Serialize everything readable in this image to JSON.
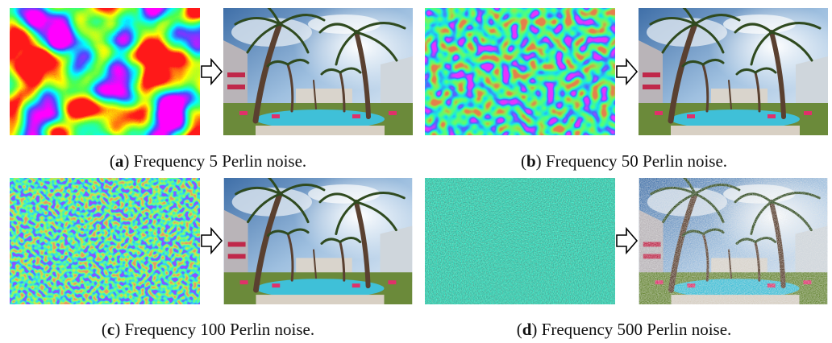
{
  "panels": [
    {
      "caption": [
        "(",
        "a",
        ") Frequency 5 Perlin noise."
      ]
    },
    {
      "caption": [
        "(",
        "b",
        ") Frequency 50 Perlin noise."
      ]
    },
    {
      "caption": [
        "(",
        "c",
        ") Frequency 100 Perlin noise."
      ]
    },
    {
      "caption": [
        "(",
        "d",
        ") Frequency 500 Perlin noise."
      ]
    }
  ]
}
